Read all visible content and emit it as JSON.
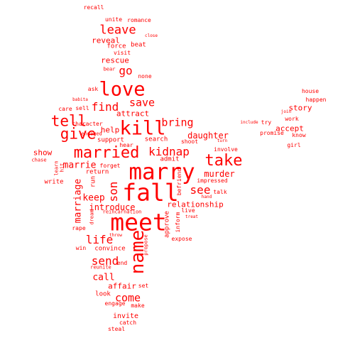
{
  "color": "#ff0000",
  "words": [
    "recall",
    "unite",
    "romance",
    "close",
    "leave",
    "reveal",
    "beat",
    "force",
    "visit",
    "rescue",
    "go",
    "bear",
    "none",
    "love",
    "ask",
    "save",
    "kill",
    "babita",
    "sell",
    "find",
    "house",
    "happen",
    "tell",
    "care",
    "attract",
    "bring",
    "join",
    "work",
    "story",
    "include",
    "try",
    "give",
    "character",
    "help",
    "promise",
    "know",
    "accept",
    "married",
    "engaged",
    "daughter",
    "support",
    "hear",
    "search",
    "turn",
    "girl",
    "kidnap",
    "show",
    "involve",
    "shoot",
    "take",
    "admit",
    "chase",
    "marrie",
    "forget",
    "learn",
    "hit",
    "marry",
    "return",
    "write",
    "murder",
    "run",
    "befriend",
    "impressed",
    "see",
    "talk",
    "marriage",
    "fall",
    "son",
    "keep",
    "hand",
    "relationship",
    "introduce",
    "live",
    "treat",
    "reincarnation",
    "dream",
    "inform",
    "meet",
    "rape",
    "approve",
    "life",
    "throw",
    "name",
    "propose",
    "expose",
    "win",
    "convince",
    "send",
    "reunite",
    "end",
    "call",
    "affair",
    "set",
    "look",
    "come",
    "engage",
    "make",
    "invite",
    "catch",
    "steal"
  ]
}
